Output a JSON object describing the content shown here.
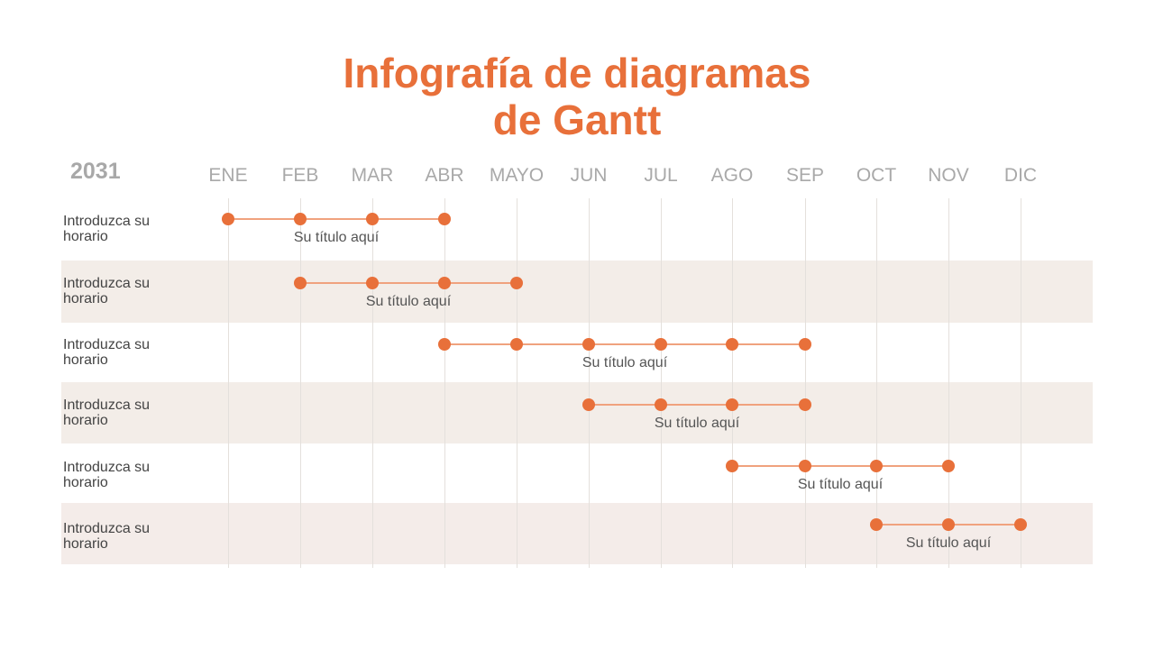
{
  "title": {
    "line1": "Infografía de diagramas",
    "line2": "de Gantt"
  },
  "year": "2031",
  "months": [
    "ENE",
    "FEB",
    "MAR",
    "ABR",
    "MAYO",
    "JUN",
    "JUL",
    "AGO",
    "SEP",
    "OCT",
    "NOV",
    "DIC"
  ],
  "rows": [
    {
      "label": "Introduzca su horario",
      "task": "Su título aquí",
      "start_month": "ENE",
      "end_month": "ABR"
    },
    {
      "label": "Introduzca su horario",
      "task": "Su título aquí",
      "start_month": "FEB",
      "end_month": "MAYO"
    },
    {
      "label": "Introduzca su horario",
      "task": "Su título aquí",
      "start_month": "ABR",
      "end_month": "SEP"
    },
    {
      "label": "Introduzca su horario",
      "task": "Su título aquí",
      "start_month": "JUN",
      "end_month": "SEP"
    },
    {
      "label": "Introduzca su horario",
      "task": "Su título aquí",
      "start_month": "AGO",
      "end_month": "NOV"
    },
    {
      "label": "Introduzca su horario",
      "task": "Su título aquí",
      "start_month": "OCT",
      "end_month": "DIC"
    }
  ],
  "colors": {
    "accent": "#e8703a",
    "bar": "#f0a27e",
    "row_shade": "#f3ede8"
  }
}
